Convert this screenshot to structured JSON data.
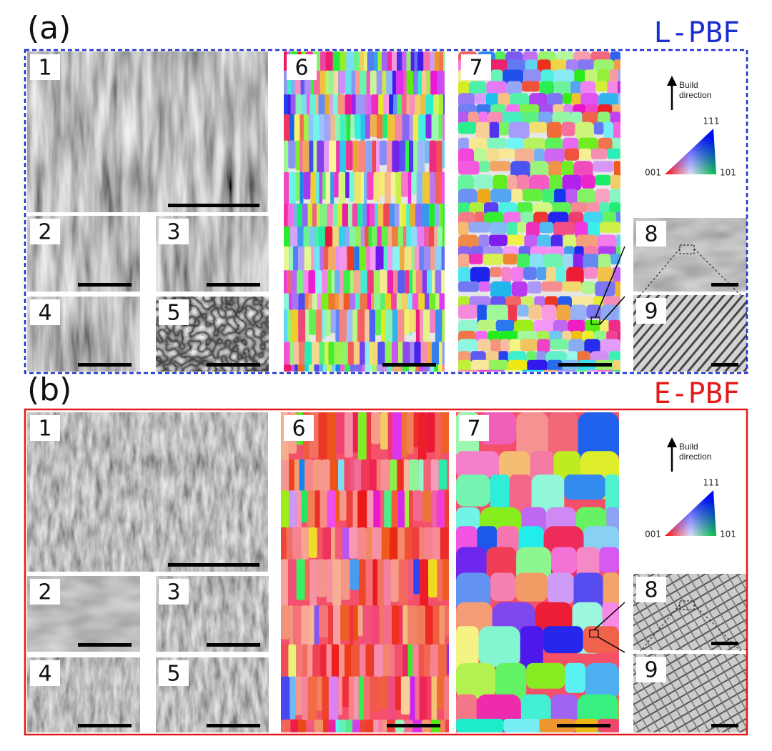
{
  "panels": [
    {
      "label": "(a)",
      "process": "L-PBF",
      "tiles": [
        "1",
        "2",
        "3",
        "4",
        "5",
        "6",
        "7",
        "8",
        "9"
      ],
      "legend": {
        "arrow": "Build direction",
        "corner_top": "111",
        "corner_left": "001",
        "corner_right": "101"
      }
    },
    {
      "label": "(b)",
      "process": "E-PBF",
      "tiles": [
        "1",
        "2",
        "3",
        "4",
        "5",
        "6",
        "7",
        "8",
        "9"
      ],
      "legend": {
        "arrow": "Build direction",
        "corner_top": "111",
        "corner_left": "001",
        "corner_right": "101"
      }
    }
  ]
}
